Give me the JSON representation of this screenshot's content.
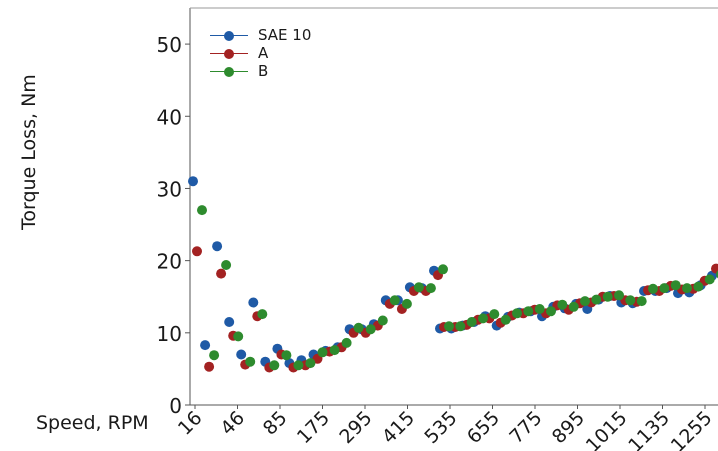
{
  "chart_data": {
    "type": "scatter",
    "title": "",
    "xlabel": "Speed, RPM",
    "ylabel": "Torque Loss, Nm",
    "ylim": [
      0,
      55
    ],
    "yticks": [
      0,
      10,
      20,
      30,
      40,
      50
    ],
    "xtick_labels": [
      "16",
      "46",
      "85",
      "175",
      "295",
      "415",
      "535",
      "655",
      "775",
      "895",
      "1015",
      "1135",
      "1255"
    ],
    "grid": false,
    "legend_position": "top-left",
    "series": [
      {
        "name": "SAE 10",
        "color": "#1f5aa6",
        "values": [
          31.0,
          8.3,
          22.0,
          11.5,
          7.0,
          14.2,
          6.0,
          7.8,
          5.8,
          6.2,
          7.0,
          7.5,
          8.0,
          10.5,
          10.5,
          11.2,
          14.5,
          14.5,
          16.3,
          16.2,
          18.6,
          10.6,
          10.6,
          11.0,
          11.5,
          12.3,
          11.0,
          12.2,
          12.8,
          13.0,
          12.3,
          13.6,
          13.4,
          14.0,
          13.3,
          14.6,
          15.1,
          14.2,
          14.1,
          15.8,
          15.8,
          16.2,
          15.5,
          15.6,
          16.6,
          17.9
        ]
      },
      {
        "name": "A",
        "color": "#a32222",
        "values": [
          21.3,
          5.3,
          18.2,
          9.6,
          5.6,
          12.3,
          5.2,
          7.0,
          5.2,
          5.5,
          6.4,
          7.4,
          8.0,
          10.0,
          10.0,
          11.0,
          14.0,
          13.3,
          15.8,
          15.8,
          18.0,
          10.8,
          10.8,
          11.1,
          11.8,
          12.0,
          11.4,
          12.4,
          12.7,
          13.2,
          12.7,
          13.8,
          13.2,
          14.1,
          14.2,
          15.0,
          15.1,
          14.5,
          14.3,
          15.9,
          15.8,
          16.5,
          16.0,
          16.1,
          17.2,
          18.9
        ]
      },
      {
        "name": "B",
        "color": "#2e8b2e",
        "values": [
          27.0,
          6.9,
          19.4,
          9.5,
          6.0,
          12.6,
          5.5,
          6.9,
          5.5,
          5.8,
          7.3,
          7.6,
          8.6,
          10.7,
          10.5,
          11.7,
          14.5,
          14.0,
          16.3,
          16.2,
          18.8,
          10.9,
          10.9,
          11.5,
          12.0,
          12.6,
          11.8,
          12.7,
          13.0,
          13.3,
          13.0,
          13.9,
          13.6,
          14.4,
          14.6,
          15.0,
          15.2,
          14.5,
          14.4,
          16.1,
          16.2,
          16.6,
          16.2,
          16.4,
          17.4,
          18.1
        ]
      }
    ]
  }
}
